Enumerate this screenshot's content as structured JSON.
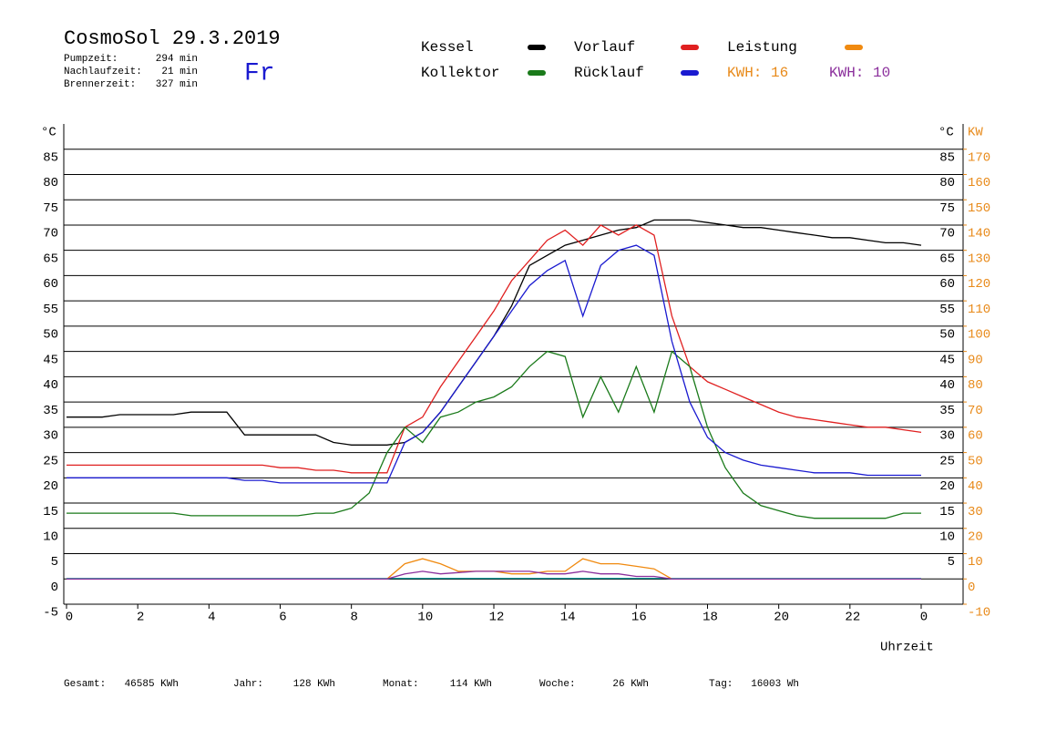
{
  "header": {
    "title": "CosmoSol 29.3.2019",
    "day": "Fr",
    "info": [
      {
        "label": "Pumpzeit:",
        "value": "294 min"
      },
      {
        "label": "Nachlaufzeit:",
        "value": "21 min"
      },
      {
        "label": "Brennerzeit:",
        "value": "327 min"
      }
    ],
    "kwh_labels": [
      {
        "text": "KWH: 16",
        "color": "#e88a1a"
      },
      {
        "text": "KWH: 10",
        "color": "#8b2f9c"
      }
    ]
  },
  "chart_data": {
    "type": "line",
    "x_label": "Uhrzeit",
    "y_unit": "°C",
    "y2_unit": "KW",
    "xlim": [
      0,
      24
    ],
    "xticks": [
      0,
      2,
      4,
      6,
      8,
      10,
      12,
      14,
      16,
      18,
      20,
      22,
      {
        "value": 24,
        "label": "0"
      }
    ],
    "ylim": [
      -5,
      90
    ],
    "yticks": [
      -5,
      0,
      5,
      10,
      15,
      20,
      25,
      30,
      35,
      40,
      45,
      50,
      55,
      60,
      65,
      70,
      75,
      80,
      85
    ],
    "y_right_ticks": [
      5,
      10,
      15,
      20,
      25,
      30,
      35,
      40,
      45,
      50,
      55,
      60,
      65,
      70,
      75,
      80,
      85
    ],
    "y2lim": [
      -10,
      180
    ],
    "y2ticks": [
      -10,
      0,
      10,
      20,
      30,
      40,
      50,
      60,
      70,
      80,
      90,
      100,
      110,
      120,
      130,
      140,
      150,
      160,
      170
    ],
    "grid": true,
    "x": [
      0,
      0.5,
      1,
      1.5,
      2,
      2.5,
      3,
      3.5,
      4,
      4.5,
      5,
      5.5,
      6,
      6.5,
      7,
      7.5,
      8,
      8.5,
      9,
      9.5,
      10,
      10.5,
      11,
      11.5,
      12,
      12.5,
      13,
      13.5,
      14,
      14.5,
      15,
      15.5,
      16,
      16.5,
      17,
      17.5,
      18,
      18.5,
      19,
      19.5,
      20,
      20.5,
      21,
      21.5,
      22,
      22.5,
      23,
      23.5,
      24
    ],
    "series": [
      {
        "name": "Kessel",
        "color": "#000000",
        "values": [
          32,
          32,
          32,
          32.5,
          32.5,
          32.5,
          32.5,
          33,
          33,
          33,
          28.5,
          28.5,
          28.5,
          28.5,
          28.5,
          27,
          26.5,
          26.5,
          26.5,
          27,
          29,
          33,
          38,
          43,
          48,
          54,
          62,
          64,
          66,
          67,
          68,
          69,
          69.5,
          71,
          71,
          71,
          70.5,
          70,
          69.5,
          69.5,
          69,
          68.5,
          68,
          67.5,
          67.5,
          67,
          66.5,
          66.5,
          66
        ]
      },
      {
        "name": "Vorlauf",
        "color": "#e02020",
        "values": [
          22.5,
          22.5,
          22.5,
          22.5,
          22.5,
          22.5,
          22.5,
          22.5,
          22.5,
          22.5,
          22.5,
          22.5,
          22,
          22,
          21.5,
          21.5,
          21,
          21,
          21,
          30,
          32,
          38,
          43,
          48,
          53,
          59,
          63,
          67,
          69,
          66,
          70,
          68,
          70,
          68,
          52,
          42,
          39,
          37.5,
          36,
          34.5,
          33,
          32,
          31.5,
          31,
          30.5,
          30,
          30,
          29.5,
          29
        ]
      },
      {
        "name": "Leistung",
        "color": "#f08a10",
        "axis": "y2",
        "values": [
          0,
          0,
          0,
          0,
          0,
          0,
          0,
          0,
          0,
          0,
          0,
          0,
          0,
          0,
          0,
          0,
          0,
          0,
          0,
          6,
          8,
          6,
          3,
          3,
          3,
          2,
          2,
          3,
          3,
          8,
          6,
          6,
          5,
          4,
          0,
          0,
          0,
          0,
          0,
          0,
          0,
          0,
          0,
          0,
          0,
          0,
          0,
          0,
          0
        ]
      },
      {
        "name": "Kollektor",
        "color": "#1a7a1a",
        "values": [
          13,
          13,
          13,
          13,
          13,
          13,
          13,
          12.5,
          12.5,
          12.5,
          12.5,
          12.5,
          12.5,
          12.5,
          13,
          13,
          14,
          17,
          25,
          30,
          27,
          32,
          33,
          35,
          36,
          38,
          42,
          45,
          44,
          32,
          40,
          33,
          42,
          33,
          45,
          42,
          30,
          22,
          17,
          14.5,
          13.5,
          12.5,
          12,
          12,
          12,
          12,
          12,
          13,
          13
        ]
      },
      {
        "name": "Rücklauf",
        "color": "#1a1ad0",
        "values": [
          20,
          20,
          20,
          20,
          20,
          20,
          20,
          20,
          20,
          20,
          19.5,
          19.5,
          19,
          19,
          19,
          19,
          19,
          19,
          19,
          27,
          29,
          33,
          38,
          43,
          48,
          53,
          58,
          61,
          63,
          52,
          62,
          65,
          66,
          64,
          47,
          35,
          28,
          25,
          23.5,
          22.5,
          22,
          21.5,
          21,
          21,
          21,
          20.5,
          20.5,
          20.5,
          20.5
        ]
      },
      {
        "color": "#8b2f9c",
        "axis": "y2",
        "values": [
          0,
          0,
          0,
          0,
          0,
          0,
          0,
          0,
          0,
          0,
          0,
          0,
          0,
          0,
          0,
          0,
          0,
          0,
          0,
          2,
          3,
          2,
          2.5,
          3,
          3,
          3,
          3,
          2,
          2,
          3,
          2,
          2,
          1,
          1,
          0,
          0,
          0,
          0,
          0,
          0,
          0,
          0,
          0,
          0,
          0,
          0,
          0,
          0,
          0
        ]
      }
    ]
  },
  "footer": {
    "stats": [
      {
        "label": "Gesamt:",
        "value": "46585 KWh"
      },
      {
        "label": "Jahr:",
        "value": "128 KWh"
      },
      {
        "label": "Monat:",
        "value": "114 KWh"
      },
      {
        "label": "Woche:",
        "value": "26 KWh"
      },
      {
        "label": "Tag:",
        "value": "16003 Wh"
      }
    ]
  }
}
